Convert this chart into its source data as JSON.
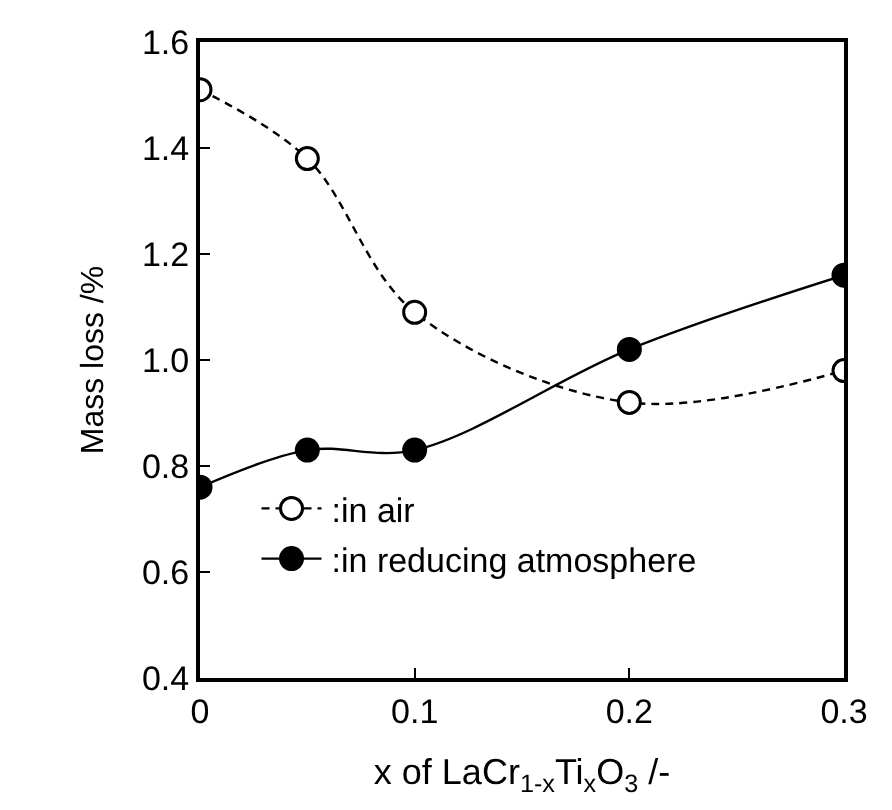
{
  "chart_data": {
    "type": "line",
    "xlabel": "x of LaCr$_{1-x}$Ti$_{x}$O$_{3}$ /-",
    "ylabel": "Mass loss /%",
    "x": [
      0,
      0.05,
      0.1,
      0.2,
      0.3
    ],
    "series": [
      {
        "name": ":in air",
        "color": "#000000",
        "values": [
          1.51,
          1.38,
          1.09,
          0.92,
          0.98
        ],
        "line_style": "dashed",
        "marker": "circle-open"
      },
      {
        "name": ":in reducing atmosphere",
        "color": "#000000",
        "values": [
          0.76,
          0.83,
          0.83,
          1.02,
          1.16
        ],
        "line_style": "solid",
        "marker": "circle"
      }
    ],
    "xlim": [
      0,
      0.3
    ],
    "xticks": [
      0,
      0.1,
      0.2,
      0.3
    ],
    "ylim": [
      0.4,
      1.6
    ],
    "yticks": [
      {
        "value": 0.4,
        "label": "0.4"
      },
      {
        "value": 0.6,
        "label": "0.6"
      },
      {
        "value": 0.8,
        "label": "0.8"
      },
      {
        "value": 1.0,
        "label": "1.0"
      },
      {
        "value": 1.2,
        "label": "1.2"
      },
      {
        "value": 1.4,
        "label": "1.4"
      },
      {
        "value": 1.6,
        "label": "1.6"
      }
    ],
    "legend": "bottom left"
  }
}
